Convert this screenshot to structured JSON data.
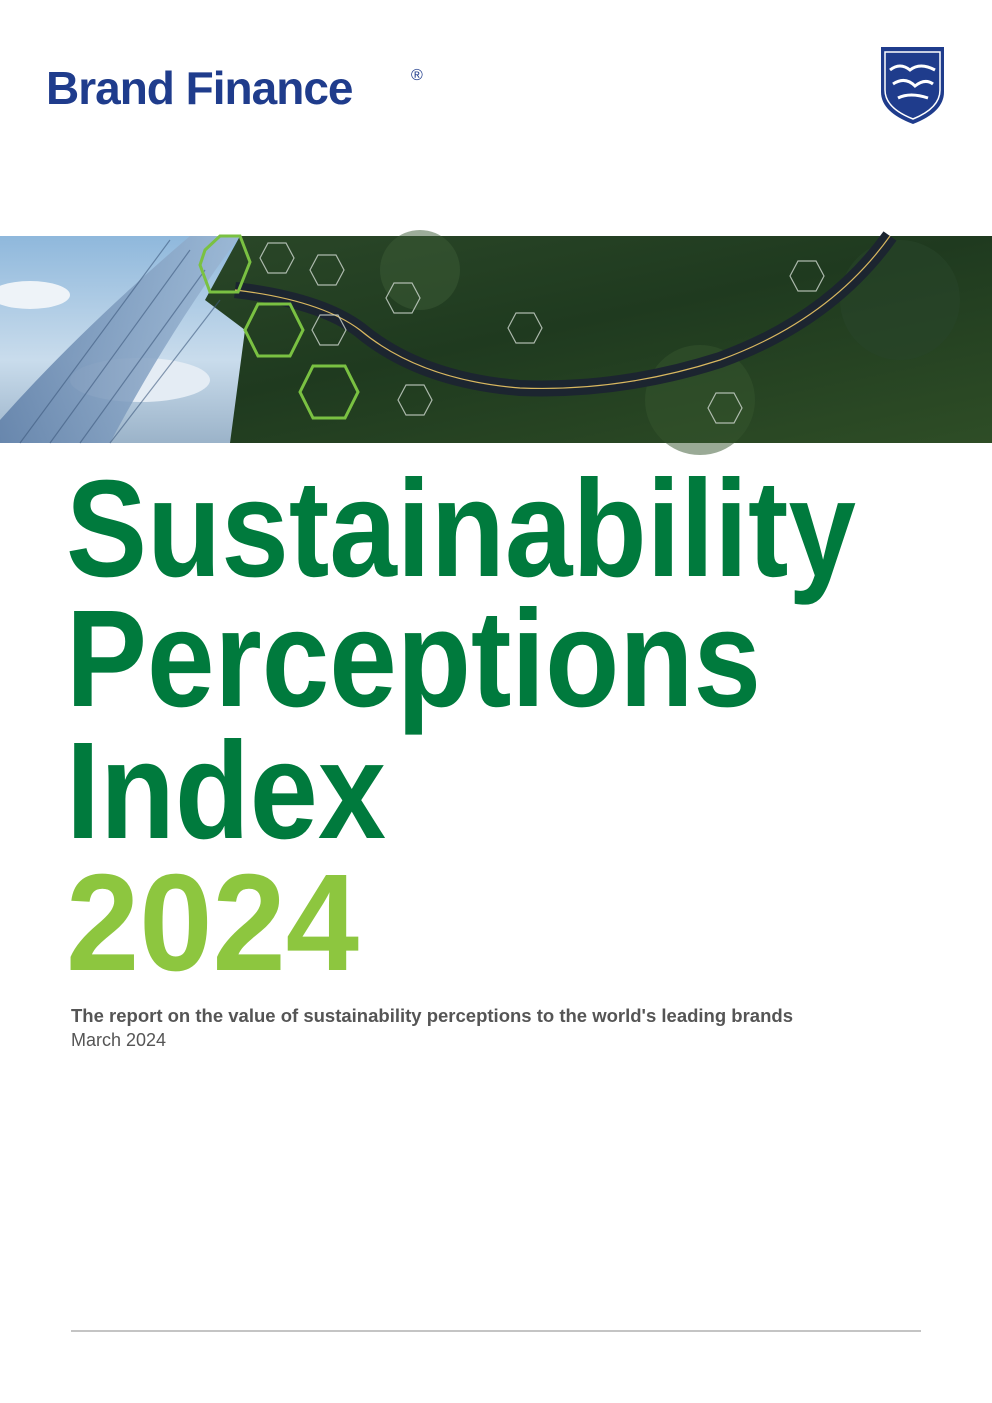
{
  "header": {
    "logo": "Brand Finance",
    "registered": "®"
  },
  "title": {
    "lines": [
      "Sustainability",
      "Perceptions",
      "Index"
    ],
    "year": "2024"
  },
  "subtitle": "The report on the value of sustainability perceptions to the world's leading brands",
  "date": "March 2024"
}
